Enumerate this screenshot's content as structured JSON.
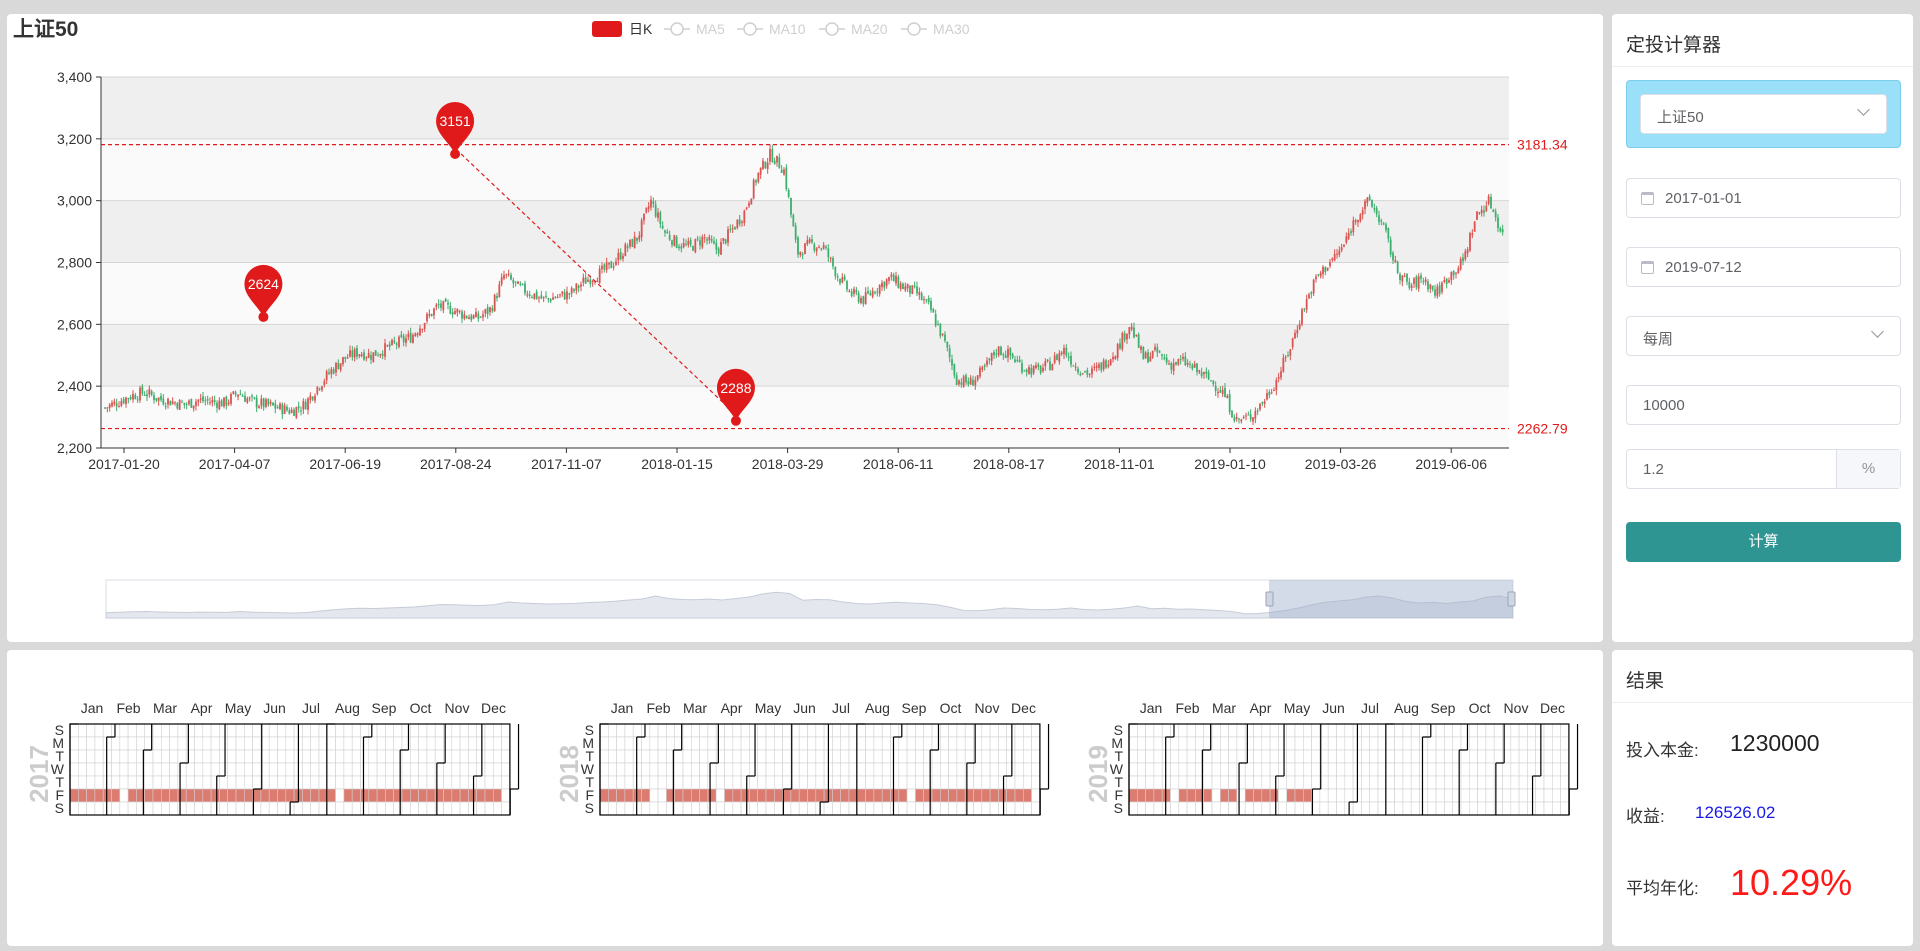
{
  "kline": {
    "title": "上证50",
    "legend": [
      {
        "name": "日K",
        "color": "#e01a1a",
        "active": true
      },
      {
        "name": "MA5",
        "color": "#cfcfcf",
        "active": false
      },
      {
        "name": "MA10",
        "color": "#cfcfcf",
        "active": false
      },
      {
        "name": "MA20",
        "color": "#cfcfcf",
        "active": false
      },
      {
        "name": "MA30",
        "color": "#cfcfcf",
        "active": false
      }
    ],
    "y_ticks": [
      "3,400",
      "3,200",
      "3,000",
      "2,800",
      "2,600",
      "2,400",
      "2,200"
    ],
    "x_ticks": [
      "2017-01-20",
      "2017-04-07",
      "2017-06-19",
      "2017-08-24",
      "2017-11-07",
      "2018-01-15",
      "2018-03-29",
      "2018-06-11",
      "2018-08-17",
      "2018-11-01",
      "2019-01-10",
      "2019-03-26",
      "2019-06-06"
    ],
    "markers": [
      {
        "label": "2624",
        "x_index": 11.9,
        "value": 2624
      },
      {
        "label": "3151",
        "x_index": 26.3,
        "value": 3151
      },
      {
        "label": "2288",
        "x_index": 47.4,
        "value": 2288
      }
    ],
    "mark_lines": [
      {
        "label": "3181.34",
        "value": 3181.34
      },
      {
        "label": "2262.79",
        "value": 2262.79
      }
    ],
    "colors": {
      "up": "#d9534f",
      "down": "#3cae6d",
      "mark": "#e01a1a",
      "grid_band": "#efefef"
    }
  },
  "chart_data": {
    "type": "candlestick",
    "title": "上证50",
    "series_names": [
      "日K",
      "MA5",
      "MA10",
      "MA20",
      "MA30"
    ],
    "ylim": [
      2200,
      3400
    ],
    "x_start": "2017-01-20",
    "x_end": "2019-07-12",
    "close_approx": [
      2330,
      2350,
      2370,
      2380,
      2360,
      2350,
      2340,
      2355,
      2350,
      2345,
      2380,
      2350,
      2340,
      2330,
      2320,
      2340,
      2400,
      2450,
      2490,
      2510,
      2500,
      2520,
      2540,
      2560,
      2610,
      2660,
      2650,
      2630,
      2620,
      2650,
      2760,
      2720,
      2700,
      2680,
      2690,
      2700,
      2740,
      2760,
      2790,
      2840,
      2880,
      3000,
      2900,
      2860,
      2850,
      2880,
      2840,
      2900,
      2960,
      3080,
      3151,
      3100,
      2830,
      2860,
      2850,
      2760,
      2700,
      2680,
      2720,
      2750,
      2720,
      2700,
      2650,
      2550,
      2420,
      2410,
      2450,
      2520,
      2500,
      2460,
      2450,
      2470,
      2520,
      2460,
      2440,
      2470,
      2520,
      2600,
      2490,
      2510,
      2470,
      2480,
      2450,
      2420,
      2380,
      2288,
      2300,
      2350,
      2420,
      2520,
      2650,
      2750,
      2800,
      2850,
      2950,
      3000,
      2920,
      2780,
      2720,
      2750,
      2700,
      2760,
      2800,
      2950,
      3000,
      2890
    ],
    "annotations": [
      {
        "label": "2624",
        "value": 2624
      },
      {
        "label": "3151",
        "value": 3151
      },
      {
        "label": "2288",
        "value": 2288
      },
      {
        "label": "3181.34",
        "value": 3181.34
      },
      {
        "label": "2262.79",
        "value": 2262.79
      }
    ],
    "legend_position": "top-center",
    "grid": true
  },
  "calculator": {
    "title": "定投计算器",
    "index_select": "上证50",
    "start_date": "2017-01-01",
    "end_date": "2019-07-12",
    "frequency": "每周",
    "amount": "10000",
    "rate": "1.2",
    "rate_unit": "%",
    "calc_button": "计算"
  },
  "calendar": {
    "day_labels": [
      "S",
      "M",
      "T",
      "W",
      "T",
      "F",
      "S"
    ],
    "month_labels": [
      "Jan",
      "Feb",
      "Mar",
      "Apr",
      "May",
      "Jun",
      "Jul",
      "Aug",
      "Sep",
      "Oct",
      "Nov",
      "Dec"
    ],
    "years": [
      {
        "label": "2017",
        "filled_weeks": 52,
        "gaps": [
          6,
          32
        ]
      },
      {
        "label": "2018",
        "filled_weeks": 52,
        "gaps": [
          6,
          7,
          14,
          37
        ]
      },
      {
        "label": "2019",
        "filled_weeks": 22,
        "gaps": [
          5,
          10,
          13,
          18
        ]
      }
    ],
    "fill_color": "#dc7c70"
  },
  "result": {
    "title": "结果",
    "principal_label": "投入本金:",
    "principal_value": "1230000",
    "profit_label": "收益:",
    "profit_value": "126526.02",
    "annual_label": "平均年化:",
    "annual_value": "10.29%"
  }
}
